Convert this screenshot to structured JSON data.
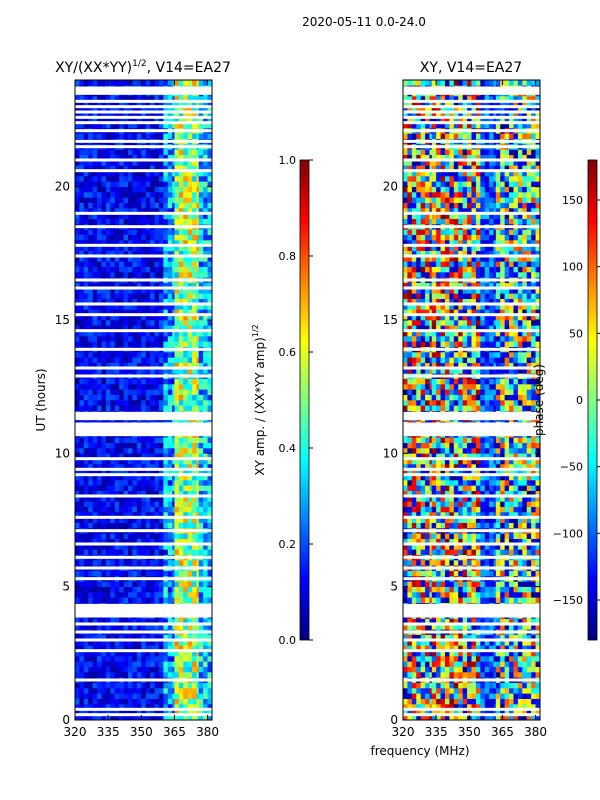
{
  "figure": {
    "suptitle": "2020-05-11 0.0-24.0",
    "shared_xlabel": "frequency (MHz)"
  },
  "colors": {
    "jet": [
      "#000080",
      "#0000ff",
      "#0080ff",
      "#00ffff",
      "#80ff80",
      "#ffff00",
      "#ff8000",
      "#ff0000",
      "#800000"
    ],
    "flag": "#ffffff",
    "axis": "#000000"
  },
  "chart_data": [
    {
      "type": "heatmap",
      "id": "left",
      "title_main": "XY/(XX*YY)",
      "title_sup": "1/2",
      "title_tail": ", V14=EA27",
      "xlabel": "",
      "ylabel": "UT (hours)",
      "xlim": [
        320,
        382
      ],
      "ylim": [
        0,
        24
      ],
      "xticks": [
        320,
        335,
        350,
        365,
        380
      ],
      "yticks": [
        0,
        5,
        10,
        15,
        20
      ],
      "colorbar": {
        "label_main": "XY amp. / (XX*YY amp)",
        "label_sup": "1/2",
        "range": [
          0.0,
          1.0
        ],
        "ticks": [
          "0.0",
          "0.2",
          "0.4",
          "0.6",
          "0.8",
          "1.0"
        ],
        "tick_values": [
          0.0,
          0.2,
          0.4,
          0.6,
          0.8,
          1.0
        ]
      },
      "bands": [
        {
          "freq": [
            320,
            360
          ],
          "value_range": [
            0.02,
            0.22
          ]
        },
        {
          "freq": [
            360,
            365
          ],
          "value_range": [
            0.1,
            0.45
          ]
        },
        {
          "freq": [
            365,
            376
          ],
          "value_range": [
            0.3,
            0.75
          ]
        },
        {
          "freq": [
            376,
            382
          ],
          "value_range": [
            0.15,
            0.5
          ]
        }
      ],
      "flagged_ut_hours": [
        0.2,
        0.4,
        1.5,
        2.6,
        3.0,
        3.3,
        3.6,
        3.9,
        4.0,
        4.1,
        4.2,
        4.3,
        5.3,
        5.7,
        6.1,
        6.6,
        7.1,
        7.6,
        8.4,
        9.2,
        9.4,
        9.8,
        10.7,
        10.8,
        10.9,
        11.0,
        11.1,
        11.3,
        11.4,
        11.5,
        12.9,
        13.2,
        13.9,
        14.6,
        15.2,
        15.6,
        16.2,
        16.5,
        17.4,
        17.8,
        18.5,
        19.0,
        20.6,
        21.0,
        21.5,
        21.7,
        22.1,
        22.4,
        22.6,
        22.8,
        23.0,
        23.2,
        23.5,
        23.6,
        23.7
      ]
    },
    {
      "type": "heatmap",
      "id": "right",
      "title_main": "XY, V14=EA27",
      "xlabel": "",
      "ylabel": "",
      "xlim": [
        320,
        382
      ],
      "ylim": [
        0,
        24
      ],
      "xticks": [
        320,
        335,
        350,
        365,
        380
      ],
      "yticks": [
        0,
        5,
        10,
        15,
        20
      ],
      "colorbar": {
        "label_main": "phase (deg)",
        "range": [
          -180,
          180
        ],
        "ticks": [
          "150",
          "100",
          "50",
          "0",
          "−50",
          "−100",
          "−150"
        ],
        "tick_values": [
          150,
          100,
          50,
          0,
          -50,
          -100,
          -150
        ]
      },
      "bands": [
        {
          "freq": [
            320,
            333
          ],
          "value_range": [
            -180,
            180
          ]
        },
        {
          "freq": [
            333,
            355
          ],
          "value_range": [
            -180,
            180
          ]
        },
        {
          "freq": [
            355,
            362
          ],
          "value_range": [
            -160,
            -60
          ]
        },
        {
          "freq": [
            362,
            382
          ],
          "value_range": [
            -180,
            120
          ]
        }
      ],
      "flagged_ut_hours": [
        0.2,
        0.4,
        1.5,
        2.6,
        3.0,
        3.3,
        3.6,
        3.9,
        4.0,
        4.1,
        4.2,
        4.3,
        5.3,
        5.7,
        6.1,
        6.6,
        7.1,
        7.6,
        8.4,
        9.2,
        9.4,
        9.8,
        10.7,
        10.8,
        10.9,
        11.0,
        11.1,
        11.3,
        11.4,
        11.5,
        12.9,
        13.2,
        13.9,
        14.6,
        15.2,
        15.6,
        16.2,
        16.5,
        17.4,
        17.8,
        18.5,
        19.0,
        20.6,
        21.0,
        21.5,
        21.7,
        22.1,
        22.4,
        22.6,
        22.8,
        23.0,
        23.2,
        23.5,
        23.6,
        23.7
      ]
    }
  ]
}
